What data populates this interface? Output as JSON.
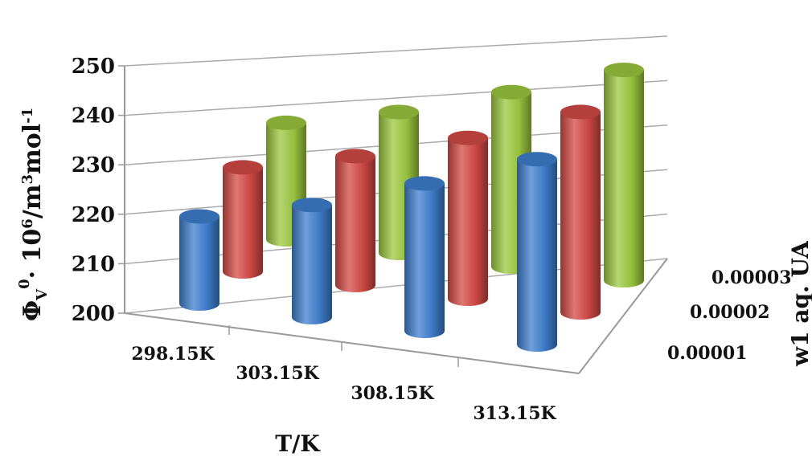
{
  "chart_data": {
    "type": "bar",
    "variant": "3d-cylinder",
    "xlabel": "T/K",
    "ylabel": "ΦV0· 106/m3mol-1",
    "ylabel_parts": {
      "main": "Φ",
      "sub": "V",
      "sup": "0",
      "mid": "· 10",
      "sup2": "6",
      "unit": "/m",
      "sup3": "3",
      "unit2": "mol",
      "sup4": "-1"
    },
    "zlabel": "w1 aq. UA",
    "zlabel_parts": {
      "main": "w",
      "sub": "1",
      "rest": " aq. UA"
    },
    "categories": [
      "298.15K",
      "303.15K",
      "308.15K",
      "313.15K"
    ],
    "series": [
      {
        "name": "0.00001",
        "color": "#3f7fcf",
        "values": [
          217.5,
          221.5,
          227,
          232.5
        ]
      },
      {
        "name": "0.00002",
        "color": "#d44a45",
        "values": [
          222,
          226,
          231,
          237
        ]
      },
      {
        "name": "0.00003",
        "color": "#9cc83f",
        "values": [
          226,
          230,
          235.5,
          241
        ]
      }
    ],
    "ylim": [
      200,
      250
    ],
    "yticks": [
      "200",
      "210",
      "220",
      "230",
      "240",
      "250"
    ],
    "grid": true
  }
}
